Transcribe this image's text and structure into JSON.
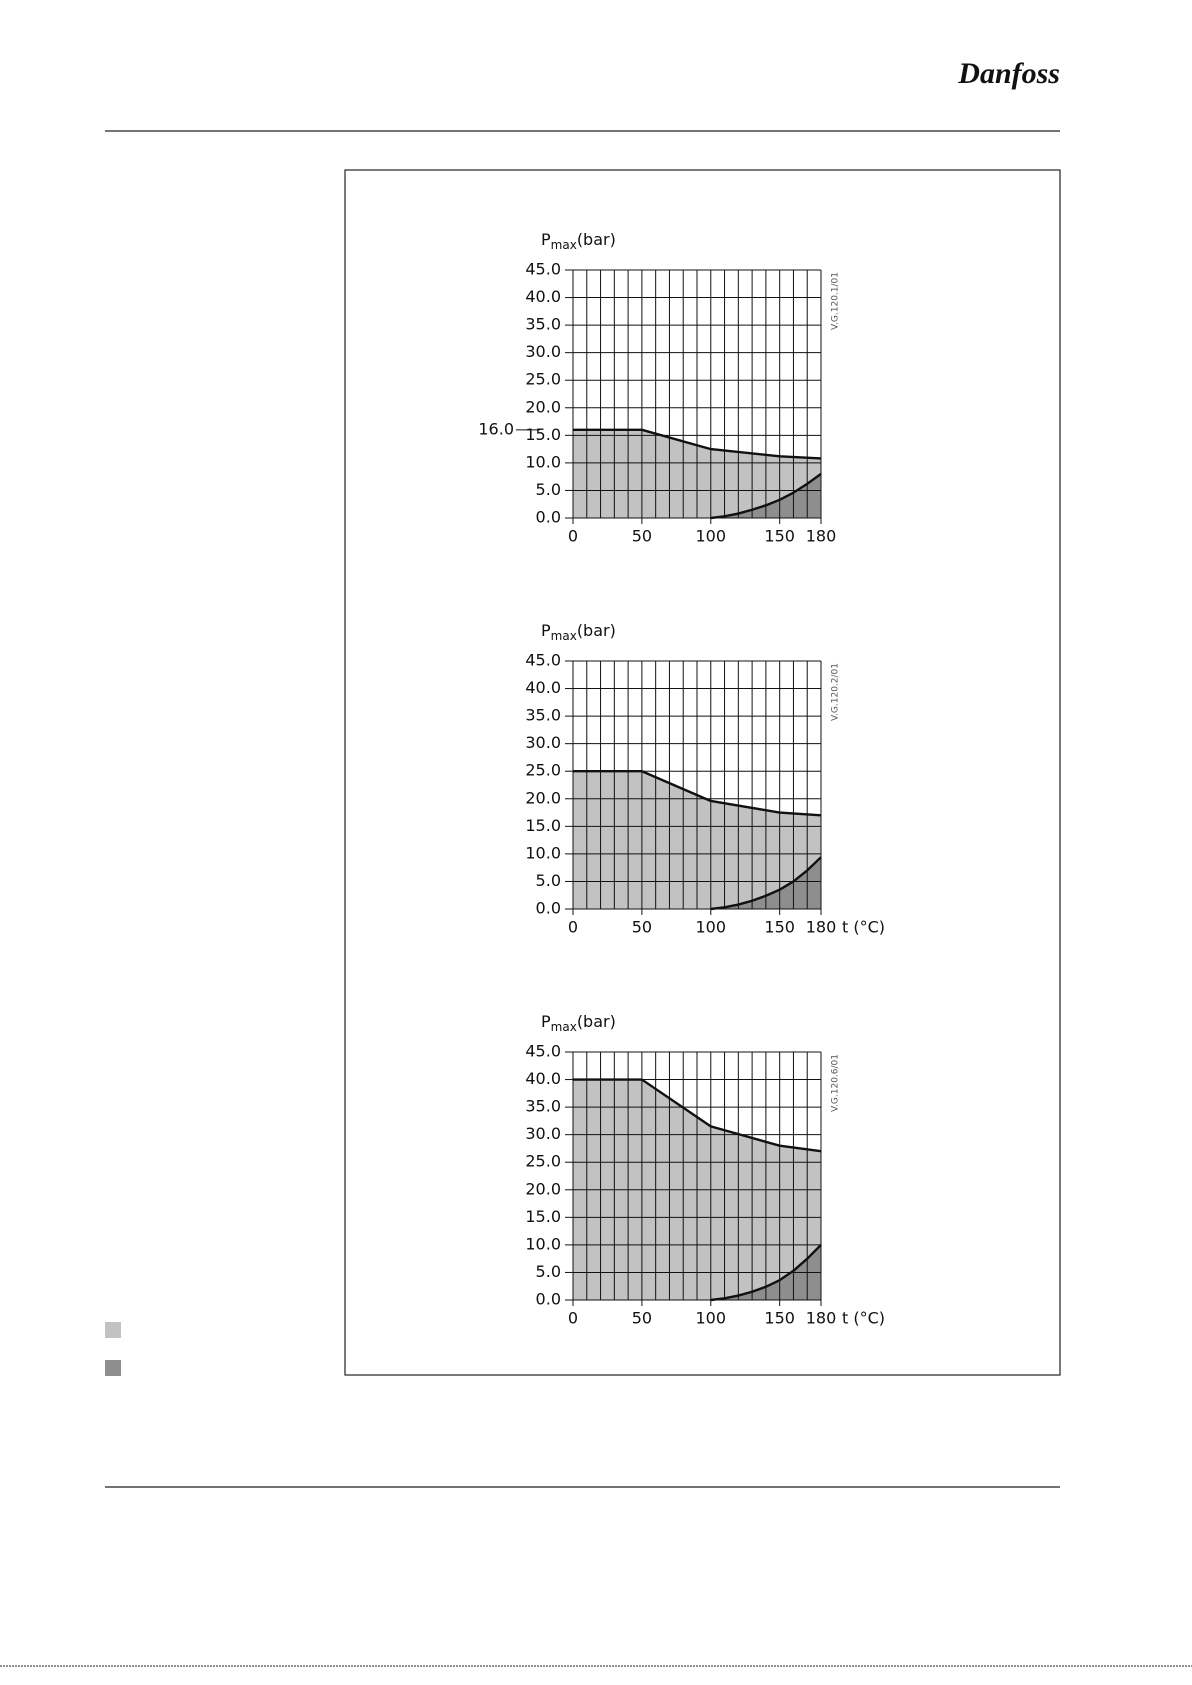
{
  "logo": "Danfoss",
  "chart_data": [
    {
      "type": "area",
      "ylabel": "P",
      "ylabel_sub": "max",
      "ylabel_unit": "(bar)",
      "code": "V.G.120.1/01",
      "annotation": {
        "value": 16,
        "label": "16.0"
      },
      "xlim": [
        0,
        180
      ],
      "ylim": [
        0,
        45
      ],
      "xticks": [
        0,
        50,
        100,
        150,
        180
      ],
      "xgrid": [
        0,
        10,
        20,
        30,
        40,
        50,
        60,
        70,
        80,
        90,
        100,
        110,
        120,
        130,
        140,
        150,
        160,
        170,
        180
      ],
      "yticks": [
        {
          "value": 0,
          "label": "0.0"
        },
        {
          "value": 5,
          "label": "5.0"
        },
        {
          "value": 10,
          "label": "10.0"
        },
        {
          "value": 15,
          "label": "15.0"
        },
        {
          "value": 20,
          "label": "20.0"
        },
        {
          "value": 25,
          "label": "25.0"
        },
        {
          "value": 30,
          "label": "30.0"
        },
        {
          "value": 35,
          "label": "35.0"
        },
        {
          "value": 40,
          "label": "40.0"
        },
        {
          "value": 45,
          "label": "45.0"
        }
      ],
      "series": [
        {
          "color": "#c2c2c2",
          "x": [
            0,
            50,
            100,
            150,
            180
          ],
          "values": [
            16,
            16,
            12.5,
            11.2,
            10.8
          ]
        },
        {
          "color": "#8e8e8e",
          "x": [
            100,
            110,
            120,
            130,
            140,
            150,
            160,
            170,
            180
          ],
          "values": [
            0,
            0.3,
            0.8,
            1.5,
            2.3,
            3.3,
            4.6,
            6.2,
            8.0
          ]
        }
      ]
    },
    {
      "type": "area",
      "ylabel": "P",
      "ylabel_sub": "max",
      "ylabel_unit": "(bar)",
      "code": "V.G.120.2/01",
      "xlabel": "t (°C)",
      "xlim": [
        0,
        180
      ],
      "ylim": [
        0,
        45
      ],
      "xticks": [
        0,
        50,
        100,
        150,
        180
      ],
      "xgrid": [
        0,
        10,
        20,
        30,
        40,
        50,
        60,
        70,
        80,
        90,
        100,
        110,
        120,
        130,
        140,
        150,
        160,
        170,
        180
      ],
      "yticks": [
        {
          "value": 0,
          "label": "0.0"
        },
        {
          "value": 5,
          "label": "5.0"
        },
        {
          "value": 10,
          "label": "10.0"
        },
        {
          "value": 15,
          "label": "15.0"
        },
        {
          "value": 20,
          "label": "20.0"
        },
        {
          "value": 25,
          "label": "25.0"
        },
        {
          "value": 30,
          "label": "30.0"
        },
        {
          "value": 35,
          "label": "35.0"
        },
        {
          "value": 40,
          "label": "40.0"
        },
        {
          "value": 45,
          "label": "45.0"
        }
      ],
      "series": [
        {
          "color": "#c2c2c2",
          "x": [
            0,
            50,
            100,
            150,
            180
          ],
          "values": [
            25,
            25,
            19.6,
            17.5,
            17
          ]
        },
        {
          "color": "#8e8e8e",
          "x": [
            100,
            110,
            120,
            130,
            140,
            150,
            160,
            170,
            180
          ],
          "values": [
            0,
            0.3,
            0.8,
            1.5,
            2.4,
            3.5,
            5.0,
            7.0,
            9.4
          ]
        }
      ]
    },
    {
      "type": "area",
      "ylabel": "P",
      "ylabel_sub": "max",
      "ylabel_unit": "(bar)",
      "code": "V.G.120.6/01",
      "xlabel": "t (°C)",
      "xlim": [
        0,
        180
      ],
      "ylim": [
        0,
        45
      ],
      "xticks": [
        0,
        50,
        100,
        150,
        180
      ],
      "xgrid": [
        0,
        10,
        20,
        30,
        40,
        50,
        60,
        70,
        80,
        90,
        100,
        110,
        120,
        130,
        140,
        150,
        160,
        170,
        180
      ],
      "yticks": [
        {
          "value": 0,
          "label": "0.0"
        },
        {
          "value": 5,
          "label": "5.0"
        },
        {
          "value": 10,
          "label": "10.0"
        },
        {
          "value": 15,
          "label": "15.0"
        },
        {
          "value": 20,
          "label": "20.0"
        },
        {
          "value": 25,
          "label": "25.0"
        },
        {
          "value": 30,
          "label": "30.0"
        },
        {
          "value": 35,
          "label": "35.0"
        },
        {
          "value": 40,
          "label": "40.0"
        },
        {
          "value": 45,
          "label": "45.0"
        }
      ],
      "series": [
        {
          "color": "#c2c2c2",
          "x": [
            0,
            50,
            100,
            150,
            180
          ],
          "values": [
            40,
            40,
            31.5,
            28,
            27
          ]
        },
        {
          "color": "#8e8e8e",
          "x": [
            100,
            110,
            120,
            130,
            140,
            150,
            160,
            170,
            180
          ],
          "values": [
            0,
            0.3,
            0.8,
            1.5,
            2.4,
            3.6,
            5.3,
            7.5,
            10.0
          ]
        }
      ]
    }
  ]
}
